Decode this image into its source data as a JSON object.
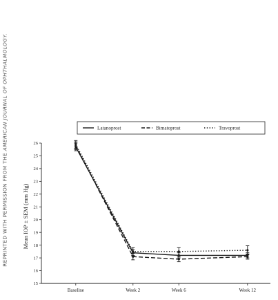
{
  "credit": {
    "prefix": "REPRINTED WITH PERMISSION FROM THE",
    "source": "AMERICAN JOURNAL OF OPHTHALMOLOGY."
  },
  "chart_data": {
    "type": "line",
    "categories": [
      "Baseline",
      "Week 2",
      "Week 6",
      "Week 12"
    ],
    "ylabel": "Mean IOP ± SEM (mm Hg)",
    "xlabel": "",
    "ylim": [
      15,
      26
    ],
    "yticks": [
      15,
      16,
      17,
      18,
      19,
      20,
      21,
      22,
      23,
      24,
      25,
      26
    ],
    "x_positions_weeks": [
      -3,
      2,
      6,
      12
    ],
    "legend_position": "top",
    "series": [
      {
        "name": "Latanoprost",
        "style": "solid",
        "color": "#1a1a1a",
        "values": [
          25.7,
          17.4,
          17.2,
          17.2
        ],
        "sem": [
          0.3,
          0.25,
          0.2,
          0.2
        ]
      },
      {
        "name": "Bimatoprost",
        "style": "dashed",
        "color": "#1a1a1a",
        "values": [
          25.8,
          17.1,
          16.9,
          17.1
        ],
        "sem": [
          0.3,
          0.25,
          0.2,
          0.2
        ]
      },
      {
        "name": "Travoprost",
        "style": "dotted",
        "color": "#1a1a1a",
        "values": [
          25.9,
          17.5,
          17.5,
          17.6
        ],
        "sem": [
          0.3,
          0.3,
          0.3,
          0.35
        ]
      }
    ]
  }
}
